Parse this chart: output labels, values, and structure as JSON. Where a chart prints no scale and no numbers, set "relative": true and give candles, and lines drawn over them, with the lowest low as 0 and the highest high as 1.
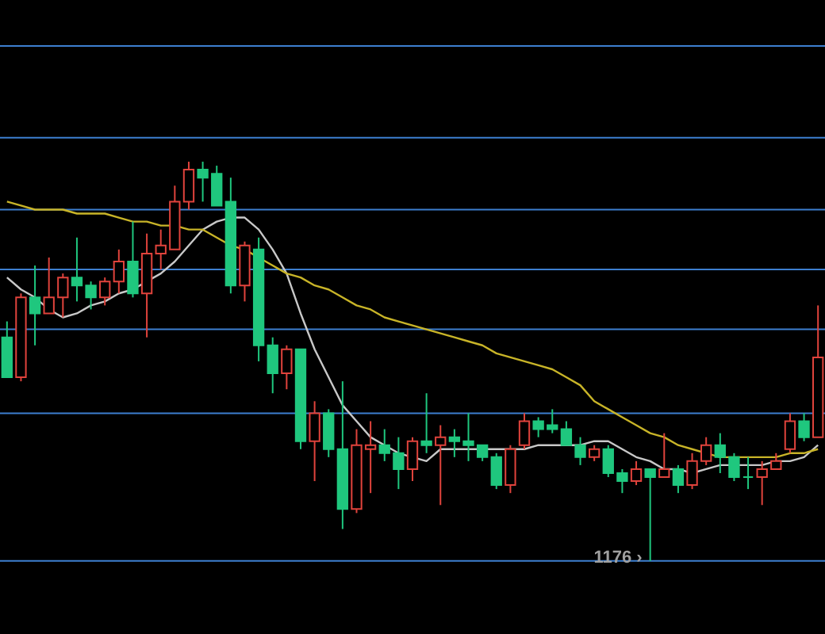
{
  "chart_data": {
    "type": "candlestick",
    "relative": true,
    "categories": [
      null,
      null,
      null,
      null,
      null,
      null,
      null,
      null,
      null,
      null,
      null,
      null,
      null,
      null,
      null,
      null,
      null,
      null,
      null,
      null,
      null,
      null,
      null,
      null,
      null,
      null,
      null,
      null,
      null,
      null,
      null,
      null,
      null,
      null,
      null,
      null,
      null,
      null,
      null,
      null,
      null,
      null,
      null,
      null,
      null,
      null,
      null,
      null,
      null,
      null,
      null,
      null,
      null,
      null,
      null,
      null,
      null,
      null,
      null
    ],
    "ohlc": [
      [
        0.56,
        0.6,
        0.46,
        0.46
      ],
      [
        0.46,
        0.67,
        0.45,
        0.66
      ],
      [
        0.66,
        0.74,
        0.54,
        0.62
      ],
      [
        0.62,
        0.76,
        0.62,
        0.66
      ],
      [
        0.66,
        0.72,
        0.61,
        0.71
      ],
      [
        0.71,
        0.81,
        0.65,
        0.69
      ],
      [
        0.69,
        0.7,
        0.63,
        0.66
      ],
      [
        0.66,
        0.71,
        0.64,
        0.7
      ],
      [
        0.7,
        0.78,
        0.67,
        0.75
      ],
      [
        0.75,
        0.85,
        0.66,
        0.67
      ],
      [
        0.67,
        0.82,
        0.56,
        0.77
      ],
      [
        0.77,
        0.83,
        0.73,
        0.79
      ],
      [
        0.78,
        0.94,
        0.78,
        0.9
      ],
      [
        0.9,
        1.0,
        0.88,
        0.98
      ],
      [
        0.98,
        1.0,
        0.9,
        0.96
      ],
      [
        0.97,
        0.99,
        0.89,
        0.89
      ],
      [
        0.9,
        0.96,
        0.67,
        0.69
      ],
      [
        0.69,
        0.8,
        0.65,
        0.79
      ],
      [
        0.78,
        0.81,
        0.5,
        0.54
      ],
      [
        0.54,
        0.56,
        0.42,
        0.47
      ],
      [
        0.47,
        0.54,
        0.43,
        0.53
      ],
      [
        0.53,
        0.53,
        0.28,
        0.3
      ],
      [
        0.3,
        0.4,
        0.2,
        0.37
      ],
      [
        0.37,
        0.38,
        0.26,
        0.28
      ],
      [
        0.28,
        0.45,
        0.08,
        0.13
      ],
      [
        0.13,
        0.33,
        0.12,
        0.29
      ],
      [
        0.28,
        0.35,
        0.17,
        0.29
      ],
      [
        0.29,
        0.33,
        0.25,
        0.27
      ],
      [
        0.27,
        0.31,
        0.18,
        0.23
      ],
      [
        0.23,
        0.31,
        0.2,
        0.3
      ],
      [
        0.3,
        0.42,
        0.27,
        0.29
      ],
      [
        0.29,
        0.34,
        0.14,
        0.31
      ],
      [
        0.31,
        0.33,
        0.26,
        0.3
      ],
      [
        0.3,
        0.37,
        0.25,
        0.29
      ],
      [
        0.29,
        0.29,
        0.25,
        0.26
      ],
      [
        0.26,
        0.27,
        0.18,
        0.19
      ],
      [
        0.19,
        0.29,
        0.17,
        0.28
      ],
      [
        0.29,
        0.37,
        0.28,
        0.35
      ],
      [
        0.35,
        0.36,
        0.31,
        0.33
      ],
      [
        0.34,
        0.38,
        0.32,
        0.33
      ],
      [
        0.33,
        0.35,
        0.29,
        0.29
      ],
      [
        0.29,
        0.31,
        0.24,
        0.26
      ],
      [
        0.26,
        0.29,
        0.25,
        0.28
      ],
      [
        0.28,
        0.29,
        0.21,
        0.22
      ],
      [
        0.22,
        0.23,
        0.17,
        0.2
      ],
      [
        0.2,
        0.25,
        0.19,
        0.23
      ],
      [
        0.23,
        0.23,
        0,
        0.21
      ],
      [
        0.21,
        0.32,
        0.21,
        0.23
      ],
      [
        0.23,
        0.24,
        0.17,
        0.19
      ],
      [
        0.19,
        0.27,
        0.18,
        0.25
      ],
      [
        0.25,
        0.31,
        0.24,
        0.29
      ],
      [
        0.29,
        0.32,
        0.22,
        0.26
      ],
      [
        0.26,
        0.27,
        0.2,
        0.21
      ],
      [
        0.21,
        0.26,
        0.18,
        0.21
      ],
      [
        0.21,
        0.25,
        0.14,
        0.23
      ],
      [
        0.23,
        0.27,
        0.23,
        0.25
      ],
      [
        0.28,
        0.37,
        0.27,
        0.35
      ],
      [
        0.35,
        0.37,
        0.3,
        0.31
      ],
      [
        0.31,
        0.64,
        0.31,
        0.51
      ]
    ],
    "colors": [
      "#1fc77e",
      "#e0433c",
      "#1fc77e",
      "#e0433c",
      "#e0433c",
      "#1fc77e",
      "#1fc77e",
      "#e0433c",
      "#e0433c",
      "#1fc77e",
      "#e0433c",
      "#e0433c",
      "#e0433c",
      "#e0433c",
      "#1fc77e",
      "#1fc77e",
      "#1fc77e",
      "#e0433c",
      "#1fc77e",
      "#1fc77e",
      "#e0433c",
      "#1fc77e",
      "#e0433c",
      "#1fc77e",
      "#1fc77e",
      "#e0433c",
      "#e0433c",
      "#1fc77e",
      "#1fc77e",
      "#e0433c",
      "#1fc77e",
      "#e0433c",
      "#1fc77e",
      "#1fc77e",
      "#1fc77e",
      "#1fc77e",
      "#e0433c",
      "#e0433c",
      "#1fc77e",
      "#1fc77e",
      "#1fc77e",
      "#1fc77e",
      "#e0433c",
      "#1fc77e",
      "#1fc77e",
      "#e0433c",
      "#1fc77e",
      "#e0433c",
      "#1fc77e",
      "#e0433c",
      "#e0433c",
      "#1fc77e",
      "#1fc77e",
      "#1fc77e",
      "#e0433c",
      "#e0433c",
      "#e0433c",
      "#1fc77e",
      "#e0433c"
    ],
    "series": [
      {
        "type": "line",
        "color": "#c8c8c8",
        "values": [
          0.71,
          0.68,
          0.66,
          0.63,
          0.61,
          0.62,
          0.64,
          0.65,
          0.67,
          0.68,
          0.7,
          0.72,
          0.75,
          0.79,
          0.83,
          0.85,
          0.86,
          0.86,
          0.83,
          0.78,
          0.72,
          0.62,
          0.53,
          0.46,
          0.39,
          0.35,
          0.31,
          0.29,
          0.27,
          0.26,
          0.25,
          0.28,
          0.28,
          0.28,
          0.28,
          0.28,
          0.28,
          0.28,
          0.29,
          0.29,
          0.29,
          0.29,
          0.3,
          0.3,
          0.28,
          0.26,
          0.25,
          0.23,
          0.23,
          0.22,
          0.23,
          0.24,
          0.24,
          0.24,
          0.24,
          0.25,
          0.25,
          0.26,
          0.29
        ]
      },
      {
        "type": "line",
        "color": "#c8b428",
        "values": [
          0.9,
          0.89,
          0.88,
          0.88,
          0.88,
          0.87,
          0.87,
          0.87,
          0.86,
          0.85,
          0.85,
          0.84,
          0.84,
          0.83,
          0.83,
          0.81,
          0.79,
          0.78,
          0.76,
          0.74,
          0.72,
          0.71,
          0.69,
          0.68,
          0.66,
          0.64,
          0.63,
          0.61,
          0.6,
          0.59,
          0.58,
          0.57,
          0.56,
          0.55,
          0.54,
          0.52,
          0.51,
          0.5,
          0.49,
          0.48,
          0.46,
          0.44,
          0.4,
          0.38,
          0.36,
          0.34,
          0.32,
          0.31,
          0.29,
          0.28,
          0.27,
          0.26,
          0.26,
          0.26,
          0.26,
          0.26,
          0.27,
          0.27,
          0.28
        ]
      }
    ],
    "ref_lines": [
      {
        "axis": "y",
        "value": 1.29,
        "color": "#3d7fd0"
      },
      {
        "axis": "y",
        "value": 1.06,
        "color": "#3d7fd0"
      },
      {
        "axis": "y",
        "value": 0.88,
        "color": "#3d7fd0"
      },
      {
        "axis": "y",
        "value": 0.73,
        "color": "#3d7fd0"
      },
      {
        "axis": "y",
        "value": 0.58,
        "color": "#3d7fd0"
      },
      {
        "axis": "y",
        "value": 0.37,
        "color": "#3d7fd0"
      },
      {
        "axis": "y",
        "value": 0,
        "color": "#3d7fd0"
      }
    ],
    "annotations": [
      {
        "text": "1176 ›",
        "y": 0
      }
    ]
  }
}
